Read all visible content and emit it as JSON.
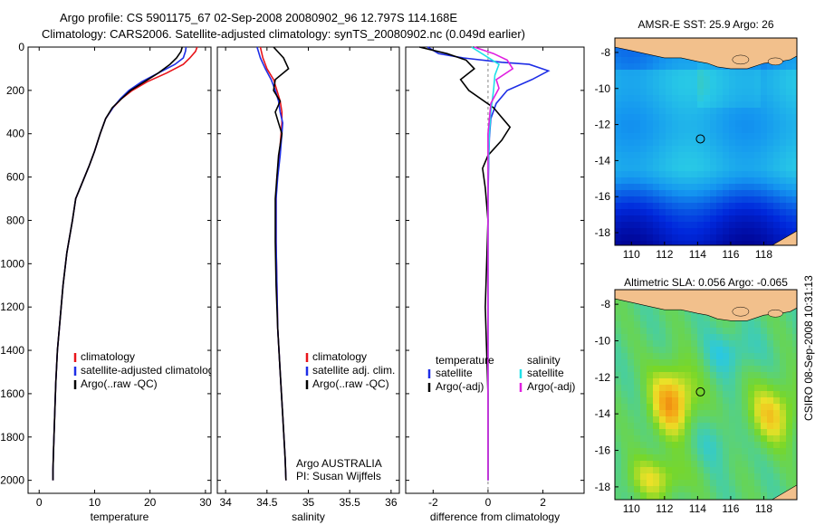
{
  "title": {
    "line1": "Argo profile: CS 5901175_67 02-Sep-2008 20080902_96 12.797S 114.168E",
    "line2": "Climatology: CARS2006. Satellite-adjusted climatology: synTS_20080902.nc (0.049d earlier)"
  },
  "side_label": "CSIRO 08-Sep-2008 10:31:13",
  "colors": {
    "red": "#e8141a",
    "blue": "#1e2ee6",
    "black": "#000000",
    "cyan": "#20e0e8",
    "magenta": "#e020e0"
  },
  "chart_data": [
    {
      "id": "temperature",
      "type": "line",
      "xlabel": "temperature",
      "ylabel": "",
      "xlim": [
        -2,
        31
      ],
      "ylim": [
        2060,
        0
      ],
      "xticks": [
        "0",
        "10",
        "20",
        "30"
      ],
      "xtick_values": [
        0,
        10,
        20,
        30
      ],
      "yticks": [
        "0",
        "200",
        "400",
        "600",
        "800",
        "1000",
        "1200",
        "1400",
        "1600",
        "1800",
        "2000"
      ],
      "ytick_values": [
        0,
        200,
        400,
        600,
        800,
        1000,
        1200,
        1400,
        1600,
        1800,
        2000
      ],
      "legend": [
        {
          "label": "climatology",
          "color": "#e8141a"
        },
        {
          "label": "satellite-adjusted climatology",
          "color": "#1e2ee6"
        },
        {
          "label": "Argo(..raw -QC)",
          "color": "#000000"
        }
      ],
      "series": [
        {
          "name": "climatology",
          "color": "#e8141a",
          "x": [
            28.5,
            28.2,
            27.2,
            26.0,
            23.0,
            19.5,
            16.8,
            14.8,
            13.3,
            12.0,
            11.0,
            10.0,
            9.0,
            8.2,
            7.4,
            6.6,
            6.0,
            5.0,
            4.3,
            3.8,
            3.3,
            3.0,
            2.8,
            2.6,
            2.5,
            2.5
          ],
          "y": [
            0,
            20,
            50,
            80,
            120,
            160,
            200,
            240,
            280,
            330,
            400,
            480,
            550,
            600,
            650,
            700,
            800,
            950,
            1100,
            1250,
            1400,
            1550,
            1700,
            1850,
            1950,
            2000
          ]
        },
        {
          "name": "satellite-adjusted climatology",
          "color": "#1e2ee6",
          "x": [
            26.5,
            26.4,
            26.0,
            24.5,
            21.5,
            18.5,
            16.2,
            14.6,
            13.3,
            12.0,
            11.0,
            10.0,
            9.0,
            8.2,
            7.4,
            6.6,
            6.0,
            5.0,
            4.3,
            3.8,
            3.3,
            3.0,
            2.8,
            2.6,
            2.5,
            2.5
          ],
          "y": [
            0,
            20,
            50,
            80,
            120,
            160,
            200,
            240,
            280,
            330,
            400,
            480,
            550,
            600,
            650,
            700,
            800,
            950,
            1100,
            1250,
            1400,
            1550,
            1700,
            1850,
            1950,
            2000
          ]
        },
        {
          "name": "Argo(..raw -QC)",
          "color": "#000000",
          "x": [
            25.8,
            25.6,
            24.8,
            23.6,
            21.5,
            19.0,
            16.5,
            14.8,
            13.2,
            12.0,
            11.0,
            10.0,
            9.0,
            8.2,
            7.4,
            6.6,
            6.0,
            5.0,
            4.3,
            3.8,
            3.3,
            3.0,
            2.8,
            2.6,
            2.5,
            2.5
          ],
          "y": [
            0,
            20,
            50,
            80,
            120,
            160,
            200,
            240,
            280,
            330,
            400,
            480,
            550,
            600,
            650,
            700,
            800,
            950,
            1100,
            1250,
            1400,
            1550,
            1700,
            1850,
            1950,
            2000
          ]
        }
      ]
    },
    {
      "id": "salinity",
      "type": "line",
      "xlabel": "salinity",
      "ylabel": "",
      "xlim": [
        33.9,
        36.1
      ],
      "ylim": [
        2060,
        0
      ],
      "xticks": [
        "34",
        "34.5",
        "35",
        "35.5",
        "36"
      ],
      "xtick_values": [
        34,
        34.5,
        35,
        35.5,
        36
      ],
      "yticks": [],
      "ytick_values": [],
      "legend": [
        {
          "label": "climatology",
          "color": "#e8141a"
        },
        {
          "label": "satellite adj. clim.",
          "color": "#1e2ee6"
        },
        {
          "label": "Argo(..raw -QC)",
          "color": "#000000"
        }
      ],
      "annotation": [
        "Argo AUSTRALIA",
        "PI: Susan Wijffels"
      ],
      "series": [
        {
          "name": "climatology",
          "color": "#e8141a",
          "x": [
            34.42,
            34.45,
            34.5,
            34.58,
            34.62,
            34.66,
            34.68,
            34.68,
            34.67,
            34.65,
            34.62,
            34.61,
            34.61,
            34.62,
            34.63,
            34.66,
            34.69,
            34.72,
            34.73
          ],
          "y": [
            0,
            50,
            100,
            150,
            200,
            250,
            300,
            350,
            400,
            500,
            600,
            700,
            900,
            1100,
            1300,
            1500,
            1700,
            1900,
            2000
          ]
        },
        {
          "name": "satellite adj. clim.",
          "color": "#1e2ee6",
          "x": [
            34.38,
            34.42,
            34.48,
            34.55,
            34.6,
            34.64,
            34.66,
            34.69,
            34.68,
            34.66,
            34.63,
            34.61,
            34.61,
            34.62,
            34.63,
            34.66,
            34.69,
            34.72,
            34.73
          ],
          "y": [
            0,
            50,
            100,
            150,
            200,
            250,
            300,
            350,
            400,
            500,
            600,
            700,
            900,
            1100,
            1300,
            1500,
            1700,
            1900,
            2000
          ]
        },
        {
          "name": "Argo(..raw -QC)",
          "color": "#000000",
          "x": [
            34.58,
            34.7,
            34.76,
            34.6,
            34.58,
            34.66,
            34.6,
            34.64,
            34.68,
            34.64,
            34.62,
            34.6,
            34.6,
            34.61,
            34.63,
            34.66,
            34.69,
            34.72,
            34.73
          ],
          "y": [
            0,
            50,
            100,
            150,
            200,
            250,
            300,
            350,
            400,
            500,
            600,
            700,
            900,
            1100,
            1300,
            1500,
            1700,
            1900,
            2000
          ]
        }
      ]
    },
    {
      "id": "difference",
      "type": "line",
      "xlabel": "difference from climatology",
      "ylabel": "",
      "xlim": [
        -3,
        3.5
      ],
      "ylim": [
        2060,
        0
      ],
      "xticks": [
        "-2",
        "0",
        "2"
      ],
      "xtick_values": [
        -2,
        0,
        2
      ],
      "yticks": [],
      "ytick_values": [],
      "legend_temperature": {
        "heading": "temperature",
        "items": [
          {
            "label": "satellite",
            "color": "#1e2ee6"
          },
          {
            "label": "Argo(-adj)",
            "color": "#000000"
          }
        ]
      },
      "legend_salinity": {
        "heading": "salinity",
        "items": [
          {
            "label": "satellite",
            "color": "#20e0e8"
          },
          {
            "label": "Argo(-adj)",
            "color": "#e020e0"
          }
        ]
      },
      "series": [
        {
          "name": "temperature satellite",
          "color": "#1e2ee6",
          "x": [
            -2.2,
            -1.8,
            -0.9,
            0.5,
            1.5,
            2.2,
            1.6,
            0.7,
            0.3,
            0.1,
            0.05,
            0.03,
            0.0,
            0.0,
            0.0
          ],
          "y": [
            0,
            30,
            50,
            70,
            80,
            110,
            150,
            200,
            260,
            330,
            420,
            500,
            700,
            1000,
            2000
          ]
        },
        {
          "name": "temperature Argo(-adj)",
          "color": "#000000",
          "x": [
            -2.5,
            -1.5,
            -0.8,
            -0.5,
            -1.0,
            -0.7,
            0.2,
            0.8,
            0.5,
            0.0,
            -0.2,
            -0.1,
            0.0,
            -0.1,
            0.0,
            0.0
          ],
          "y": [
            0,
            30,
            60,
            100,
            150,
            200,
            280,
            370,
            430,
            500,
            560,
            650,
            800,
            1200,
            1600,
            2000
          ]
        },
        {
          "name": "salinity satellite",
          "color": "#20e0e8",
          "x": [
            -0.6,
            -0.1,
            0.4,
            0.25,
            0.2,
            0.1,
            0.05,
            0.0,
            0.0,
            0.0
          ],
          "y": [
            0,
            40,
            80,
            130,
            200,
            300,
            400,
            600,
            1000,
            2000
          ]
        },
        {
          "name": "salinity Argo(-adj)",
          "color": "#e020e0",
          "x": [
            -0.5,
            0.2,
            0.7,
            0.9,
            0.3,
            0.4,
            0.1,
            0.0,
            0.0,
            0.0
          ],
          "y": [
            0,
            30,
            60,
            100,
            150,
            190,
            260,
            400,
            800,
            2000
          ]
        }
      ]
    },
    {
      "id": "sst_map",
      "type": "heatmap",
      "title": "AMSR-E SST: 25.9 Argo: 26",
      "xticks": [
        "110",
        "112",
        "114",
        "116",
        "118"
      ],
      "yticks": [
        "-8",
        "-10",
        "-12",
        "-14",
        "-16",
        "-18"
      ],
      "xlim": [
        109,
        120
      ],
      "ylim": [
        -18.7,
        -7.2
      ],
      "marker": {
        "lon": 114.168,
        "lat": -12.797
      }
    },
    {
      "id": "sla_map",
      "type": "heatmap",
      "title": "Altimetric SLA: 0.056 Argo: -0.065",
      "xticks": [
        "110",
        "112",
        "114",
        "116",
        "118"
      ],
      "yticks": [
        "-8",
        "-10",
        "-12",
        "-14",
        "-16",
        "-18"
      ],
      "xlim": [
        109,
        120
      ],
      "ylim": [
        -18.7,
        -7.2
      ],
      "marker": {
        "lon": 114.168,
        "lat": -12.797
      }
    }
  ]
}
